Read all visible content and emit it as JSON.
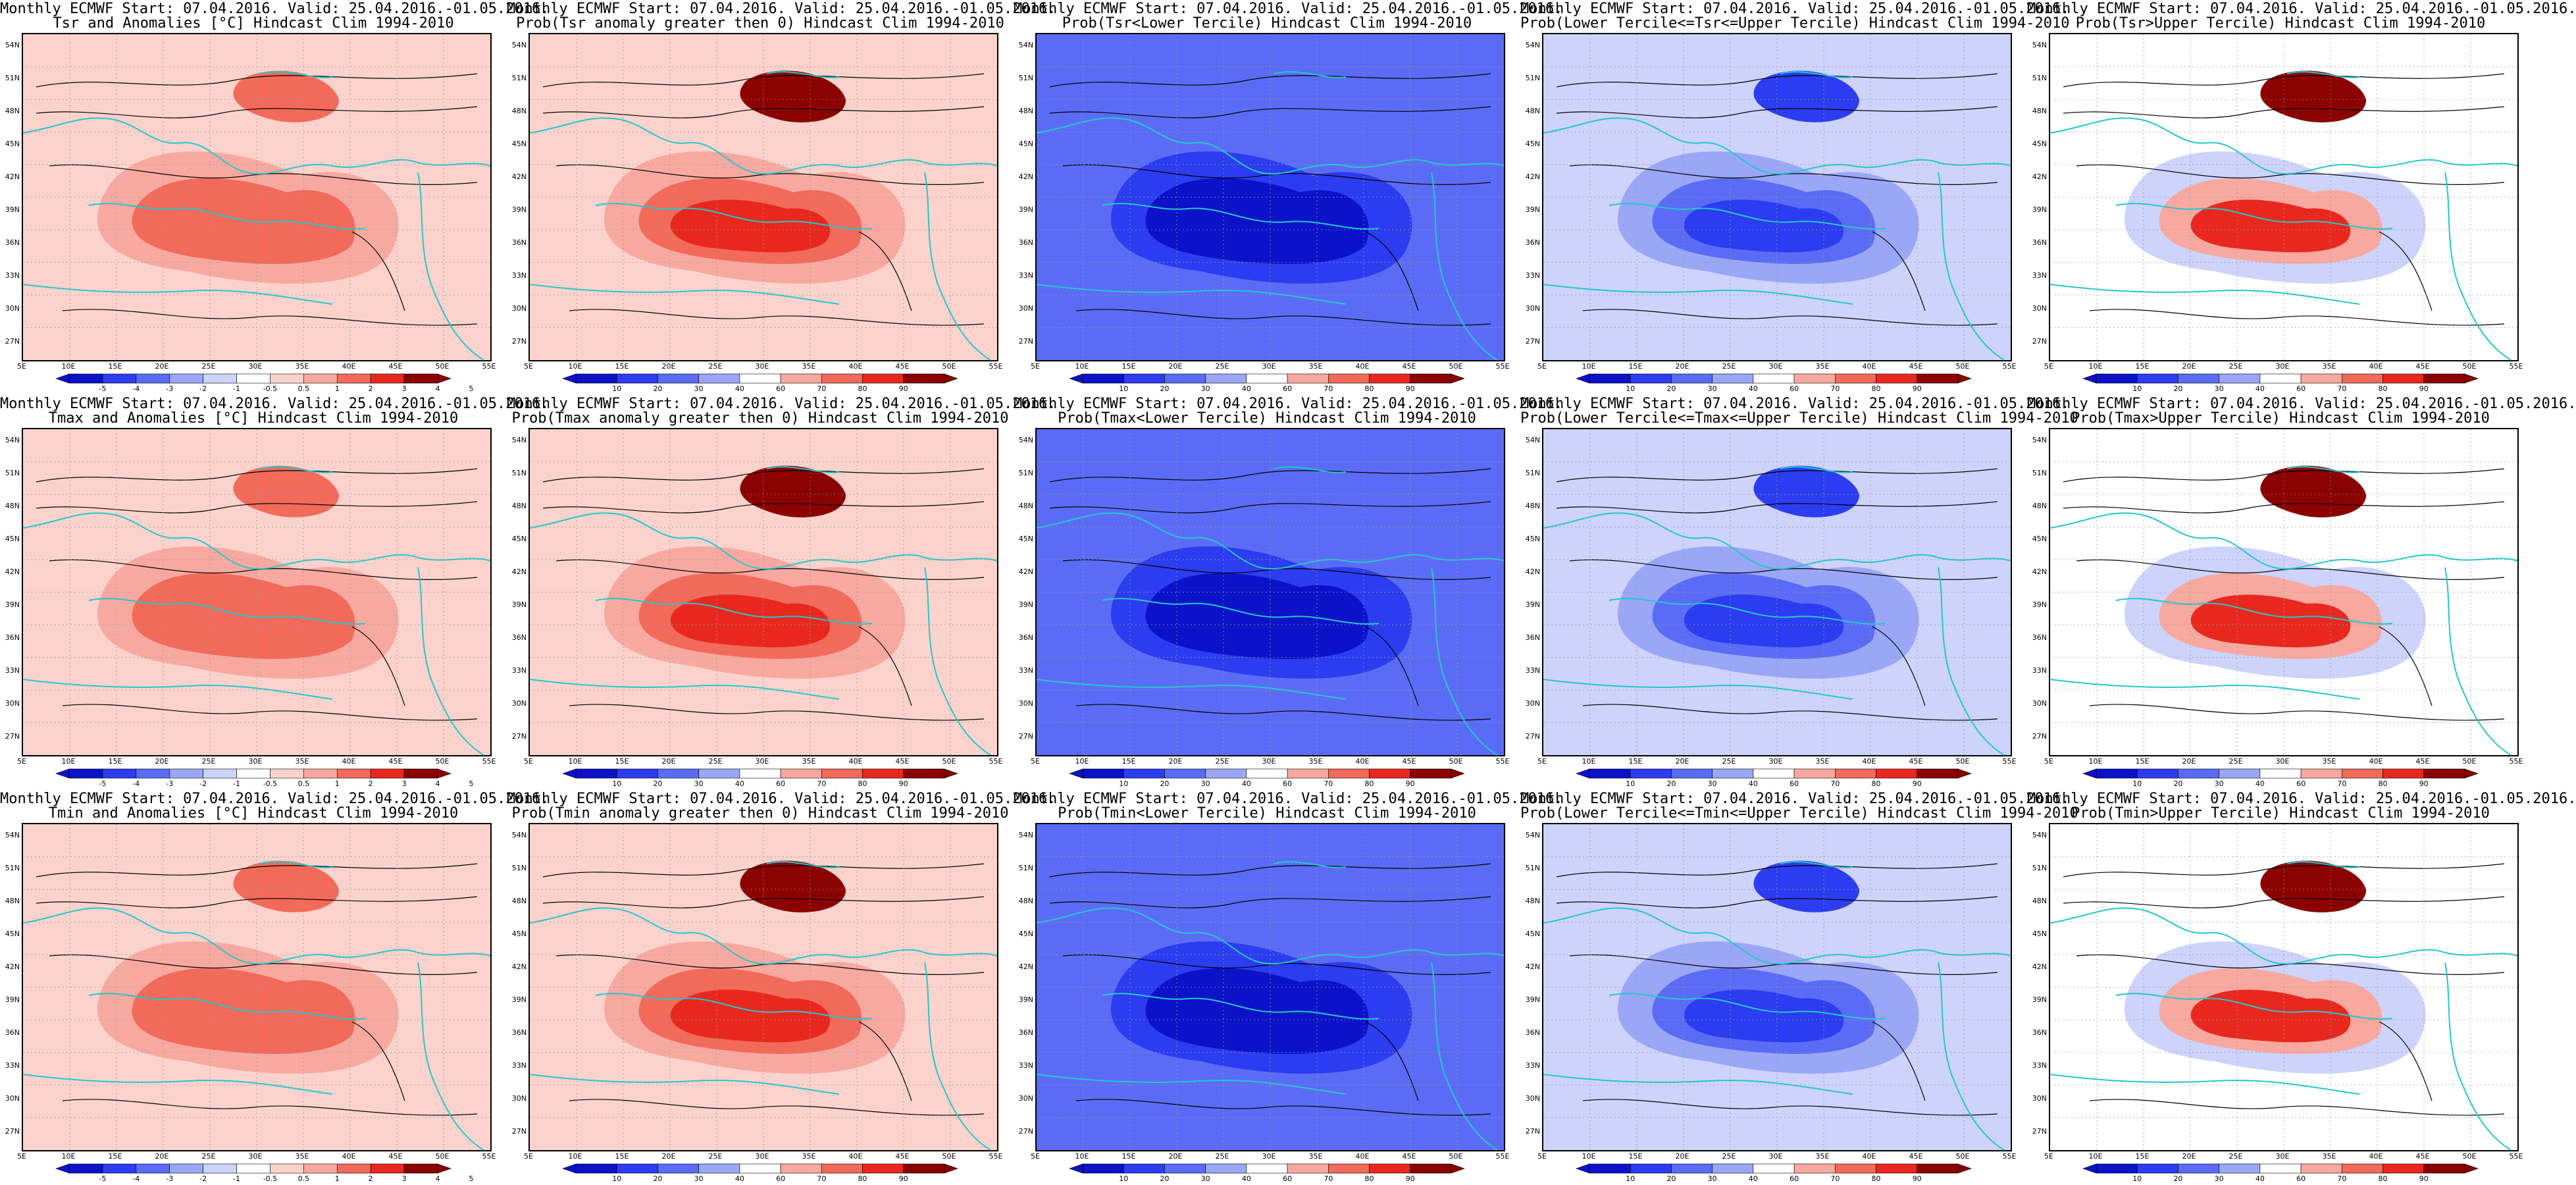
{
  "lat_labels": [
    "54N",
    "51N",
    "48N",
    "45N",
    "42N",
    "39N",
    "36N",
    "33N",
    "30N",
    "27N"
  ],
  "lon_labels": [
    "5E",
    "10E",
    "15E",
    "20E",
    "25E",
    "30E",
    "35E",
    "40E",
    "45E",
    "50E",
    "55E"
  ],
  "colors": {
    "red_dark": "#8b0000",
    "red": "#e8281e",
    "red_mid": "#f26a5a",
    "pink": "#f7a9a0",
    "pink_light": "#fbd3cc",
    "blue_dark": "#0b12c8",
    "blue": "#2c3cf0",
    "blue_mid": "#5a6cf5",
    "blue_light": "#9aa7f7",
    "blue_pale": "#cdd3fb",
    "coast": "#22c8cc",
    "contour": "#000000"
  },
  "colorbars": {
    "anomaly": [
      "-5",
      "-4",
      "-3",
      "-2",
      "-1",
      "-0.5",
      "0.5",
      "1",
      "2",
      "3",
      "4",
      "5"
    ],
    "probability": [
      "10",
      "20",
      "30",
      "40",
      "60",
      "70",
      "80",
      "90"
    ]
  },
  "panels": [
    {
      "t1": "Monthly ECMWF Start: 07.04.2016. Valid: 25.04.2016.-01.05.2016.",
      "t2": "Tsr and Anomalies [°C] Hindcast Clim 1994-2010",
      "scheme": "anomaly",
      "cbar": "anomaly"
    },
    {
      "t1": "Monthly ECMWF Start: 07.04.2016. Valid: 25.04.2016.-01.05.2016.",
      "t2": "Prob(Tsr anomaly greater then 0) Hindcast Clim 1994-2010",
      "scheme": "warm",
      "cbar": "probability"
    },
    {
      "t1": "Monthly ECMWF Start: 07.04.2016. Valid: 25.04.2016.-01.05.2016.",
      "t2": "Prob(Tsr<Lower Tercile) Hindcast Clim 1994-2010",
      "scheme": "cold",
      "cbar": "probability"
    },
    {
      "t1": "Monthly ECMWF Start: 07.04.2016. Valid: 25.04.2016.-01.05.2016.",
      "t2": "Prob(Lower Tercile<=Tsr<=Upper Tercile) Hindcast Clim 1994-2010",
      "scheme": "mid",
      "cbar": "probability"
    },
    {
      "t1": "Monthly ECMWF Start: 07.04.2016. Valid: 25.04.2016.-01.05.2016.",
      "t2": "Prob(Tsr>Upper Tercile) Hindcast Clim 1994-2010",
      "scheme": "upper",
      "cbar": "probability"
    },
    {
      "t1": "Monthly ECMWF Start: 07.04.2016. Valid: 25.04.2016.-01.05.2016.",
      "t2": "Tmax and Anomalies [°C] Hindcast Clim 1994-2010",
      "scheme": "anomaly",
      "cbar": "anomaly"
    },
    {
      "t1": "Monthly ECMWF Start: 07.04.2016. Valid: 25.04.2016.-01.05.2016.",
      "t2": "Prob(Tmax anomaly greater then 0) Hindcast Clim 1994-2010",
      "scheme": "warm",
      "cbar": "probability"
    },
    {
      "t1": "Monthly ECMWF Start: 07.04.2016. Valid: 25.04.2016.-01.05.2016.",
      "t2": "Prob(Tmax<Lower Tercile) Hindcast Clim 1994-2010",
      "scheme": "cold",
      "cbar": "probability"
    },
    {
      "t1": "Monthly ECMWF Start: 07.04.2016. Valid: 25.04.2016.-01.05.2016.",
      "t2": "Prob(Lower Tercile<=Tmax<=Upper Tercile) Hindcast Clim 1994-2010",
      "scheme": "mid",
      "cbar": "probability"
    },
    {
      "t1": "Monthly ECMWF Start: 07.04.2016. Valid: 25.04.2016.-01.05.2016.",
      "t2": "Prob(Tmax>Upper Tercile) Hindcast Clim 1994-2010",
      "scheme": "upper",
      "cbar": "probability"
    },
    {
      "t1": "Monthly ECMWF Start: 07.04.2016. Valid: 25.04.2016.-01.05.2016.",
      "t2": "Tmin and Anomalies [°C] Hindcast Clim 1994-2010",
      "scheme": "anomaly",
      "cbar": "anomaly"
    },
    {
      "t1": "Monthly ECMWF Start: 07.04.2016. Valid: 25.04.2016.-01.05.2016.",
      "t2": "Prob(Tmin anomaly greater then 0) Hindcast Clim 1994-2010",
      "scheme": "warm",
      "cbar": "probability"
    },
    {
      "t1": "Monthly ECMWF Start: 07.04.2016. Valid: 25.04.2016.-01.05.2016.",
      "t2": "Prob(Tmin<Lower Tercile) Hindcast Clim 1994-2010",
      "scheme": "cold",
      "cbar": "probability"
    },
    {
      "t1": "Monthly ECMWF Start: 07.04.2016. Valid: 25.04.2016.-01.05.2016.",
      "t2": "Prob(Lower Tercile<=Tmin<=Upper Tercile) Hindcast Clim 1994-2010",
      "scheme": "mid",
      "cbar": "probability"
    },
    {
      "t1": "Monthly ECMWF Start: 07.04.2016. Valid: 25.04.2016.-01.05.2016.",
      "t2": "Prob(Tmin>Upper Tercile) Hindcast Clim 1994-2010",
      "scheme": "upper",
      "cbar": "probability"
    }
  ]
}
